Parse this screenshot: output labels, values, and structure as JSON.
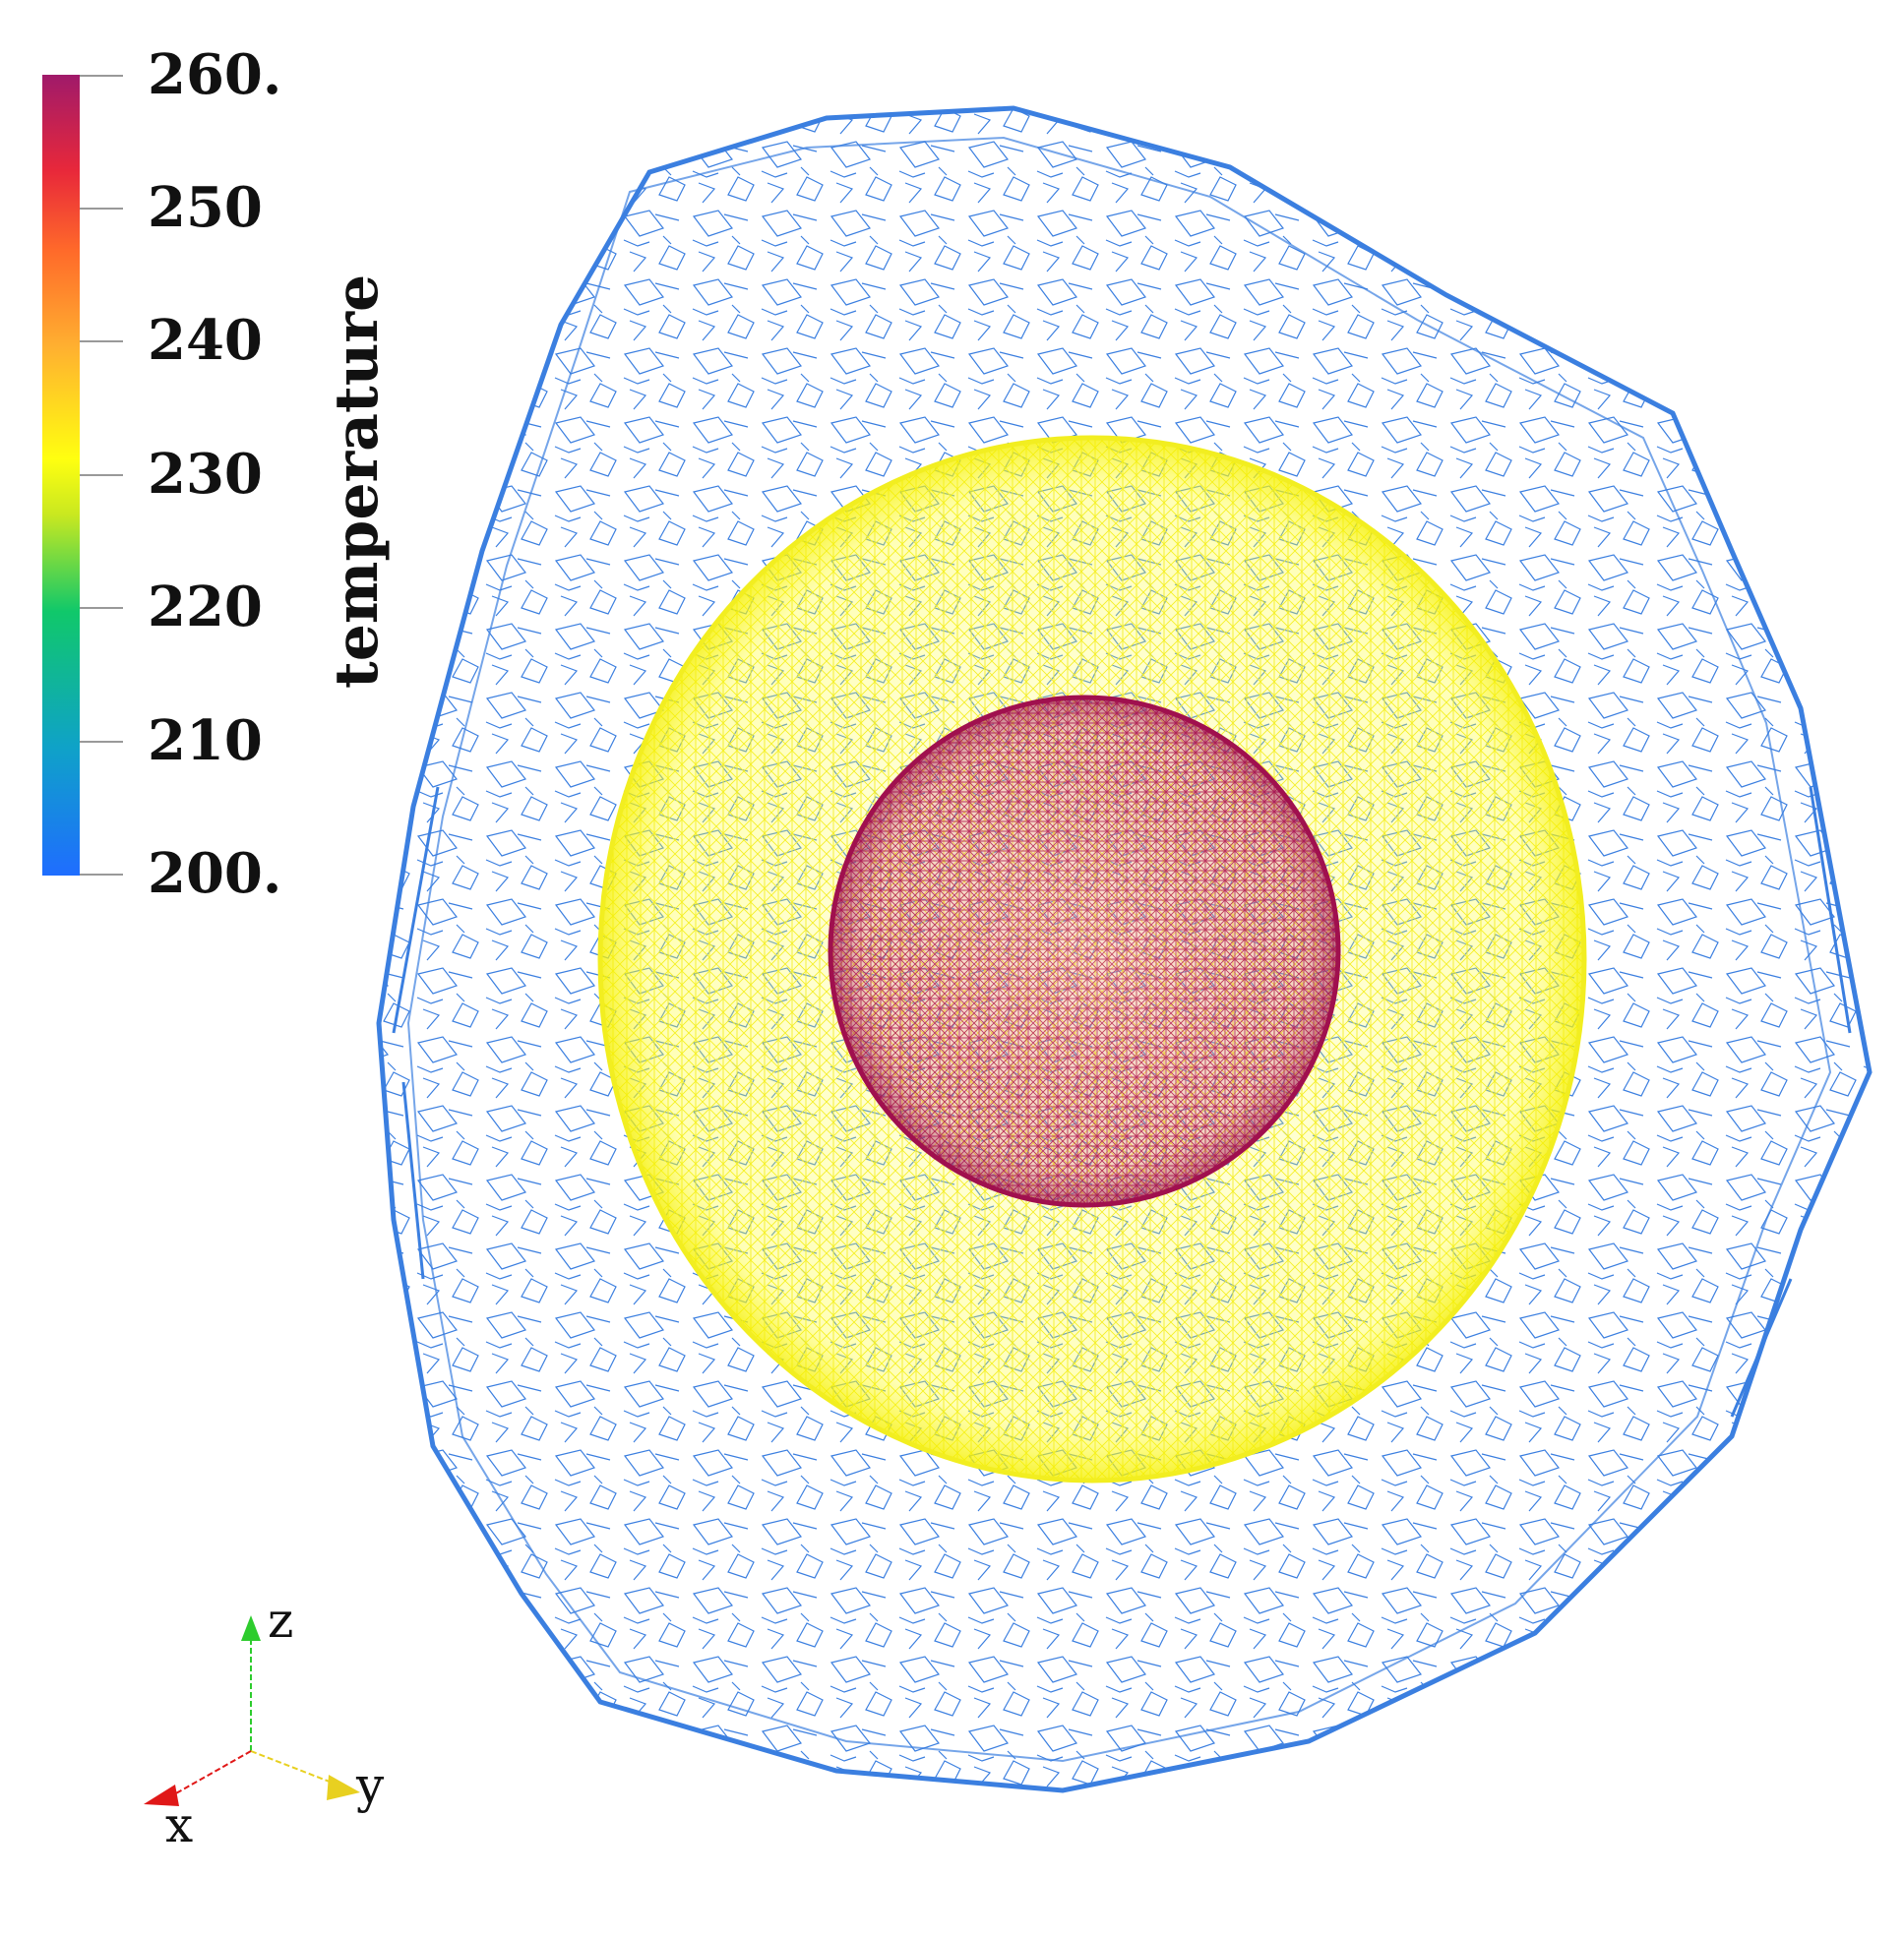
{
  "colorbar": {
    "title": "temperature",
    "ticks": [
      "260.",
      "250",
      "240",
      "230",
      "220",
      "210",
      "200."
    ],
    "range": [
      200,
      260
    ],
    "gradient": [
      "#1f6dff",
      "#0fa2c8",
      "#10c86a",
      "#c8e820",
      "#ffff10",
      "#ffb030",
      "#ff6a2a",
      "#e8283a",
      "#a01a6a"
    ]
  },
  "orientation_axes": {
    "z_label": "z",
    "y_label": "y",
    "x_label": "x",
    "z_color": "#2ecc2e",
    "y_color": "#e8d020",
    "x_color": "#e01818"
  },
  "mesh": {
    "outer_shell_color": "#3b7fe0",
    "middle_sphere_color": "#f2ee20",
    "inner_sphere_color": "#b01a55"
  }
}
